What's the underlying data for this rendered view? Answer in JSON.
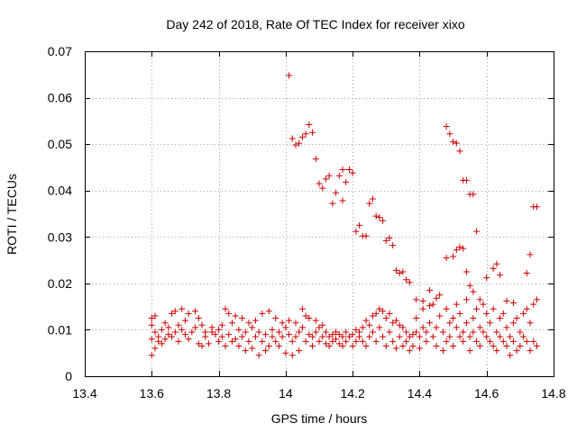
{
  "chart_data": {
    "type": "scatter",
    "title": "Day 242 of 2018, Rate Of TEC Index for receiver xixo",
    "xlabel": "GPS time / hours",
    "ylabel": "ROTI / TECUs",
    "xlim": [
      13.4,
      14.8
    ],
    "ylim": [
      0,
      0.07
    ],
    "xticks": [
      13.4,
      13.6,
      13.8,
      14.0,
      14.2,
      14.4,
      14.6,
      14.8
    ],
    "xtick_labels": [
      "13.4",
      "13.6",
      "13.8",
      "14",
      "14.2",
      "14.4",
      "14.6",
      "14.8"
    ],
    "yticks": [
      0,
      0.01,
      0.02,
      0.03,
      0.04,
      0.05,
      0.06,
      0.07
    ],
    "ytick_labels": [
      "0",
      "0.01",
      "0.02",
      "0.03",
      "0.04",
      "0.05",
      "0.06",
      "0.07"
    ],
    "grid": true,
    "marker": "+",
    "color": "#cc0000",
    "series": [
      {
        "name": "ROTI",
        "points": [
          [
            13.6,
            0.0045
          ],
          [
            13.6,
            0.008
          ],
          [
            13.6,
            0.011
          ],
          [
            13.6,
            0.0125
          ],
          [
            13.61,
            0.006
          ],
          [
            13.61,
            0.0095
          ],
          [
            13.61,
            0.013
          ],
          [
            13.62,
            0.0075
          ],
          [
            13.62,
            0.0085
          ],
          [
            13.63,
            0.007
          ],
          [
            13.63,
            0.01
          ],
          [
            13.64,
            0.008
          ],
          [
            13.64,
            0.0115
          ],
          [
            13.65,
            0.009
          ],
          [
            13.65,
            0.0105
          ],
          [
            13.66,
            0.0085
          ],
          [
            13.66,
            0.0135
          ],
          [
            13.67,
            0.0095
          ],
          [
            13.67,
            0.014
          ],
          [
            13.68,
            0.0075
          ],
          [
            13.68,
            0.011
          ],
          [
            13.69,
            0.01
          ],
          [
            13.69,
            0.0145
          ],
          [
            13.7,
            0.009
          ],
          [
            13.7,
            0.012
          ],
          [
            13.71,
            0.008
          ],
          [
            13.71,
            0.0135
          ],
          [
            13.72,
            0.0095
          ],
          [
            13.73,
            0.0105
          ],
          [
            13.73,
            0.014
          ],
          [
            13.74,
            0.007
          ],
          [
            13.74,
            0.0125
          ],
          [
            13.75,
            0.0065
          ],
          [
            13.75,
            0.011
          ],
          [
            13.76,
            0.0085
          ],
          [
            13.76,
            0.0095
          ],
          [
            13.77,
            0.007
          ],
          [
            13.78,
            0.0095
          ],
          [
            13.78,
            0.0105
          ],
          [
            13.79,
            0.009
          ],
          [
            13.8,
            0.0075
          ],
          [
            13.8,
            0.01
          ],
          [
            13.81,
            0.011
          ],
          [
            13.81,
            0.0085
          ],
          [
            13.82,
            0.0065
          ],
          [
            13.82,
            0.0145
          ],
          [
            13.83,
            0.009
          ],
          [
            13.83,
            0.0135
          ],
          [
            13.84,
            0.0115
          ],
          [
            13.84,
            0.0075
          ],
          [
            13.85,
            0.008
          ],
          [
            13.85,
            0.013
          ],
          [
            13.86,
            0.01
          ],
          [
            13.86,
            0.0065
          ],
          [
            13.87,
            0.0085
          ],
          [
            13.87,
            0.0125
          ],
          [
            13.88,
            0.0095
          ],
          [
            13.88,
            0.0055
          ],
          [
            13.89,
            0.0075
          ],
          [
            13.89,
            0.0115
          ],
          [
            13.9,
            0.0105
          ],
          [
            13.9,
            0.006
          ],
          [
            13.91,
            0.0085
          ],
          [
            13.91,
            0.012
          ],
          [
            13.92,
            0.0045
          ],
          [
            13.92,
            0.0095
          ],
          [
            13.93,
            0.0075
          ],
          [
            13.93,
            0.0135
          ],
          [
            13.94,
            0.0055
          ],
          [
            13.94,
            0.009
          ],
          [
            13.95,
            0.0065
          ],
          [
            13.95,
            0.014
          ],
          [
            13.96,
            0.01
          ],
          [
            13.96,
            0.0085
          ],
          [
            13.97,
            0.0075
          ],
          [
            13.97,
            0.0125
          ],
          [
            13.98,
            0.0095
          ],
          [
            13.98,
            0.0065
          ],
          [
            13.99,
            0.0085
          ],
          [
            13.99,
            0.0115
          ],
          [
            14.0,
            0.0105
          ],
          [
            14.0,
            0.005
          ],
          [
            14.01,
            0.009
          ],
          [
            14.01,
            0.012
          ],
          [
            14.02,
            0.0075
          ],
          [
            14.02,
            0.0045
          ],
          [
            14.03,
            0.0085
          ],
          [
            14.03,
            0.0115
          ],
          [
            14.04,
            0.0095
          ],
          [
            14.04,
            0.0055
          ],
          [
            14.05,
            0.0105
          ],
          [
            14.05,
            0.0145
          ],
          [
            14.06,
            0.0075
          ],
          [
            14.06,
            0.013
          ],
          [
            14.07,
            0.009
          ],
          [
            14.07,
            0.0125
          ],
          [
            14.08,
            0.0085
          ],
          [
            14.08,
            0.0065
          ],
          [
            14.09,
            0.0095
          ],
          [
            14.09,
            0.012
          ],
          [
            14.1,
            0.0075
          ],
          [
            14.1,
            0.0105
          ],
          [
            14.11,
            0.0085
          ],
          [
            14.11,
            0.011
          ],
          [
            14.12,
            0.007
          ],
          [
            14.12,
            0.0095
          ],
          [
            14.13,
            0.0085
          ],
          [
            14.13,
            0.0065
          ],
          [
            14.14,
            0.009
          ],
          [
            14.14,
            0.0075
          ],
          [
            14.15,
            0.008
          ],
          [
            14.15,
            0.0095
          ],
          [
            14.16,
            0.007
          ],
          [
            14.16,
            0.009
          ],
          [
            14.17,
            0.0085
          ],
          [
            14.17,
            0.0065
          ],
          [
            14.18,
            0.0075
          ],
          [
            14.18,
            0.0095
          ],
          [
            14.19,
            0.0085
          ],
          [
            14.2,
            0.009
          ],
          [
            14.2,
            0.0065
          ],
          [
            14.21,
            0.0075
          ],
          [
            14.21,
            0.01
          ],
          [
            14.22,
            0.0095
          ],
          [
            14.22,
            0.0085
          ],
          [
            14.23,
            0.0105
          ],
          [
            14.23,
            0.0075
          ],
          [
            14.24,
            0.012
          ],
          [
            14.24,
            0.0065
          ],
          [
            14.25,
            0.011
          ],
          [
            14.25,
            0.0085
          ],
          [
            14.26,
            0.013
          ],
          [
            14.26,
            0.0095
          ],
          [
            14.27,
            0.0135
          ],
          [
            14.27,
            0.0075
          ],
          [
            14.28,
            0.0145
          ],
          [
            14.28,
            0.0105
          ],
          [
            14.29,
            0.014
          ],
          [
            14.29,
            0.0085
          ],
          [
            14.3,
            0.0125
          ],
          [
            14.3,
            0.0065
          ],
          [
            14.31,
            0.0135
          ],
          [
            14.31,
            0.0095
          ],
          [
            14.32,
            0.0115
          ],
          [
            14.32,
            0.0075
          ],
          [
            14.33,
            0.012
          ],
          [
            14.33,
            0.006
          ],
          [
            14.34,
            0.011
          ],
          [
            14.34,
            0.0085
          ],
          [
            14.35,
            0.0105
          ],
          [
            14.35,
            0.0065
          ],
          [
            14.36,
            0.0095
          ],
          [
            14.36,
            0.0075
          ],
          [
            14.37,
            0.0085
          ],
          [
            14.37,
            0.0055
          ],
          [
            14.38,
            0.009
          ],
          [
            14.38,
            0.0065
          ],
          [
            14.39,
            0.0095
          ],
          [
            14.39,
            0.0125
          ],
          [
            14.4,
            0.0085
          ],
          [
            14.4,
            0.006
          ],
          [
            14.41,
            0.0105
          ],
          [
            14.41,
            0.0145
          ],
          [
            14.42,
            0.0095
          ],
          [
            14.42,
            0.0075
          ],
          [
            14.43,
            0.0115
          ],
          [
            14.43,
            0.0185
          ],
          [
            14.44,
            0.0085
          ],
          [
            14.44,
            0.0155
          ],
          [
            14.45,
            0.0105
          ],
          [
            14.45,
            0.0065
          ],
          [
            14.46,
            0.013
          ],
          [
            14.46,
            0.0175
          ],
          [
            14.47,
            0.0095
          ],
          [
            14.47,
            0.0055
          ],
          [
            14.48,
            0.0145
          ],
          [
            14.48,
            0.0075
          ],
          [
            14.49,
            0.0115
          ],
          [
            14.49,
            0.0085
          ],
          [
            14.5,
            0.0125
          ],
          [
            14.5,
            0.0065
          ],
          [
            14.51,
            0.0105
          ],
          [
            14.51,
            0.0155
          ],
          [
            14.52,
            0.0085
          ],
          [
            14.52,
            0.0135
          ],
          [
            14.53,
            0.0095
          ],
          [
            14.53,
            0.0075
          ],
          [
            14.54,
            0.0115
          ],
          [
            14.54,
            0.0165
          ],
          [
            14.55,
            0.0085
          ],
          [
            14.55,
            0.0055
          ],
          [
            14.56,
            0.0125
          ],
          [
            14.56,
            0.0095
          ],
          [
            14.57,
            0.0075
          ],
          [
            14.57,
            0.0145
          ],
          [
            14.58,
            0.0105
          ],
          [
            14.58,
            0.0065
          ],
          [
            14.59,
            0.0095
          ],
          [
            14.59,
            0.0155
          ],
          [
            14.6,
            0.0085
          ],
          [
            14.6,
            0.0135
          ],
          [
            14.61,
            0.0075
          ],
          [
            14.61,
            0.0115
          ],
          [
            14.62,
            0.0065
          ],
          [
            14.62,
            0.0145
          ],
          [
            14.63,
            0.0095
          ],
          [
            14.63,
            0.0055
          ],
          [
            14.64,
            0.0125
          ],
          [
            14.64,
            0.0085
          ],
          [
            14.65,
            0.0075
          ],
          [
            14.65,
            0.0135
          ],
          [
            14.66,
            0.0105
          ],
          [
            14.66,
            0.0065
          ],
          [
            14.67,
            0.0085
          ],
          [
            14.67,
            0.0045
          ],
          [
            14.68,
            0.0115
          ],
          [
            14.68,
            0.0075
          ],
          [
            14.69,
            0.0055
          ],
          [
            14.69,
            0.0125
          ],
          [
            14.7,
            0.0095
          ],
          [
            14.7,
            0.0065
          ],
          [
            14.71,
            0.0135
          ],
          [
            14.71,
            0.0085
          ],
          [
            14.72,
            0.0075
          ],
          [
            14.72,
            0.0145
          ],
          [
            14.73,
            0.0055
          ],
          [
            14.73,
            0.0115
          ],
          [
            14.74,
            0.0075
          ],
          [
            14.74,
            0.0155
          ],
          [
            14.75,
            0.0065
          ],
          [
            14.75,
            0.0165
          ],
          [
            14.01,
            0.0648
          ],
          [
            14.02,
            0.0512
          ],
          [
            14.03,
            0.0498
          ],
          [
            14.04,
            0.0502
          ],
          [
            14.05,
            0.0515
          ],
          [
            14.06,
            0.0522
          ],
          [
            14.07,
            0.0542
          ],
          [
            14.08,
            0.0525
          ],
          [
            14.09,
            0.0468
          ],
          [
            14.1,
            0.0415
          ],
          [
            14.11,
            0.0405
          ],
          [
            14.12,
            0.0425
          ],
          [
            14.13,
            0.0432
          ],
          [
            14.14,
            0.0372
          ],
          [
            14.15,
            0.0395
          ],
          [
            14.16,
            0.0432
          ],
          [
            14.17,
            0.0445
          ],
          [
            14.17,
            0.0378
          ],
          [
            14.18,
            0.0418
          ],
          [
            14.19,
            0.0445
          ],
          [
            14.2,
            0.0438
          ],
          [
            14.21,
            0.0312
          ],
          [
            14.22,
            0.0325
          ],
          [
            14.23,
            0.0302
          ],
          [
            14.24,
            0.0302
          ],
          [
            14.25,
            0.0372
          ],
          [
            14.26,
            0.0382
          ],
          [
            14.27,
            0.0345
          ],
          [
            14.28,
            0.0342
          ],
          [
            14.29,
            0.0335
          ],
          [
            14.3,
            0.0292
          ],
          [
            14.31,
            0.0298
          ],
          [
            14.32,
            0.0282
          ],
          [
            14.33,
            0.0228
          ],
          [
            14.34,
            0.0222
          ],
          [
            14.35,
            0.0225
          ],
          [
            14.36,
            0.0208
          ],
          [
            14.37,
            0.0202
          ],
          [
            14.39,
            0.0165
          ],
          [
            14.41,
            0.0162
          ],
          [
            14.43,
            0.0152
          ],
          [
            14.45,
            0.0168
          ],
          [
            14.48,
            0.0538
          ],
          [
            14.49,
            0.0522
          ],
          [
            14.5,
            0.0505
          ],
          [
            14.51,
            0.0502
          ],
          [
            14.52,
            0.0485
          ],
          [
            14.53,
            0.0422
          ],
          [
            14.54,
            0.0422
          ],
          [
            14.55,
            0.0392
          ],
          [
            14.56,
            0.0392
          ],
          [
            14.57,
            0.0312
          ],
          [
            14.48,
            0.0255
          ],
          [
            14.5,
            0.0258
          ],
          [
            14.51,
            0.0272
          ],
          [
            14.52,
            0.0278
          ],
          [
            14.53,
            0.0275
          ],
          [
            14.54,
            0.0225
          ],
          [
            14.55,
            0.0195
          ],
          [
            14.56,
            0.0182
          ],
          [
            14.58,
            0.0165
          ],
          [
            14.6,
            0.0212
          ],
          [
            14.62,
            0.0232
          ],
          [
            14.63,
            0.0242
          ],
          [
            14.64,
            0.0218
          ],
          [
            14.66,
            0.0162
          ],
          [
            14.68,
            0.0158
          ],
          [
            14.72,
            0.0222
          ],
          [
            14.73,
            0.0262
          ],
          [
            14.74,
            0.0365
          ],
          [
            14.75,
            0.0365
          ]
        ]
      }
    ]
  }
}
